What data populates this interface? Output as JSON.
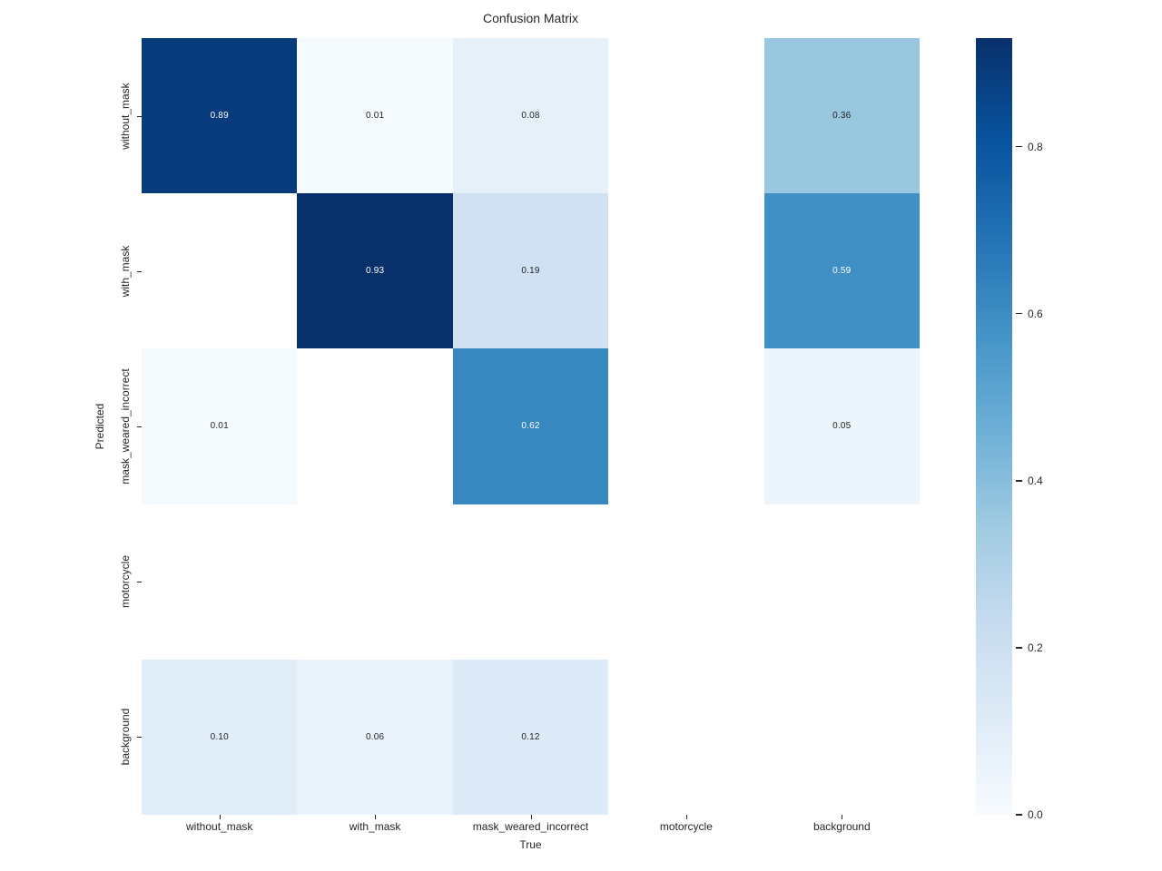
{
  "chart_data": {
    "type": "heatmap",
    "title": "Confusion Matrix",
    "xlabel": "True",
    "ylabel": "Predicted",
    "x_categories": [
      "without_mask",
      "with_mask",
      "mask_weared_incorrect",
      "motorcycle",
      "background"
    ],
    "y_categories": [
      "without_mask",
      "with_mask",
      "mask_weared_incorrect",
      "motorcycle",
      "background"
    ],
    "matrix": [
      [
        0.89,
        0.01,
        0.08,
        null,
        0.36
      ],
      [
        null,
        0.93,
        0.19,
        null,
        0.59
      ],
      [
        0.01,
        null,
        0.62,
        null,
        0.05
      ],
      [
        null,
        null,
        null,
        null,
        null
      ],
      [
        0.1,
        0.06,
        0.12,
        null,
        null
      ]
    ],
    "value_decimals": 2,
    "vmin": 0.0,
    "vmax": 0.93,
    "grid": false,
    "legend_position": "right-colorbar",
    "colormap": "Blues",
    "colormap_stops": [
      {
        "pos": 0.0,
        "color": "#f7fbff"
      },
      {
        "pos": 0.125,
        "color": "#deebf7"
      },
      {
        "pos": 0.25,
        "color": "#c6dbef"
      },
      {
        "pos": 0.375,
        "color": "#9ecae1"
      },
      {
        "pos": 0.5,
        "color": "#6baed6"
      },
      {
        "pos": 0.625,
        "color": "#4292c6"
      },
      {
        "pos": 0.75,
        "color": "#2171b5"
      },
      {
        "pos": 0.875,
        "color": "#08519c"
      },
      {
        "pos": 1.0,
        "color": "#08306b"
      }
    ],
    "colorbar_ticks": [
      "0.0",
      "0.2",
      "0.4",
      "0.6",
      "0.8"
    ],
    "colorbar_tick_values": [
      0.0,
      0.2,
      0.4,
      0.6,
      0.8
    ],
    "empty_cell_color": "#ffffff",
    "annotation_dark_color": "#262626",
    "annotation_light_color": "#ffffff",
    "background_color": "#ffffff"
  }
}
